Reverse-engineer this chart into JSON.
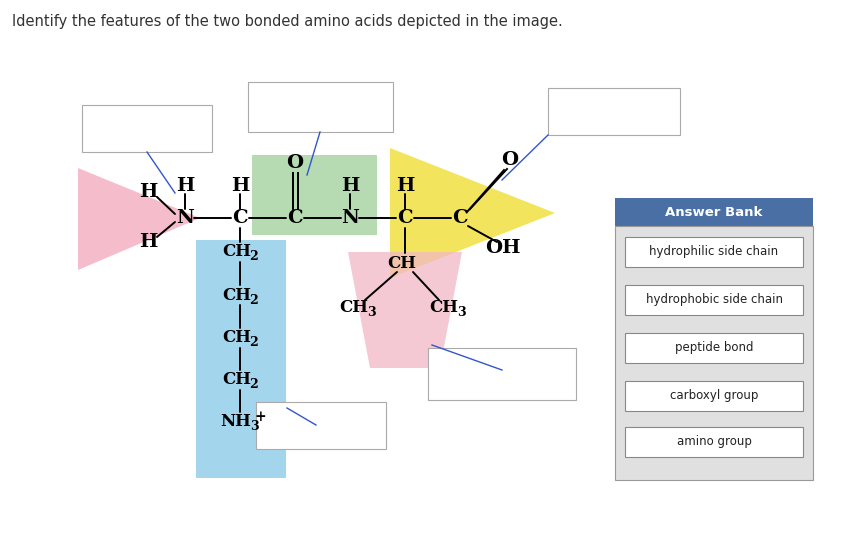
{
  "title": "Identify the features of the two bonded amino acids depicted in the image.",
  "title_fontsize": 10.5,
  "bg_color": "#ffffff",
  "answer_bank_bg": "#4a6fa5",
  "answer_bank_title": "Answer Bank",
  "answer_bank_items": [
    "hydrophilic side chain",
    "hydrophobic side chain",
    "peptide bond",
    "carboxyl group",
    "amino group"
  ],
  "pink_color": "#f2a7bc",
  "green_color": "#9ecf99",
  "yellow_color": "#f0e040",
  "cyan_color": "#85c8e8",
  "pink2_color": "#f2b8c6",
  "line_color": "#3355cc",
  "box_border": "#aaaaaa",
  "ab_item_bg": "#ffffff",
  "ab_body_bg": "#e0e0e0"
}
